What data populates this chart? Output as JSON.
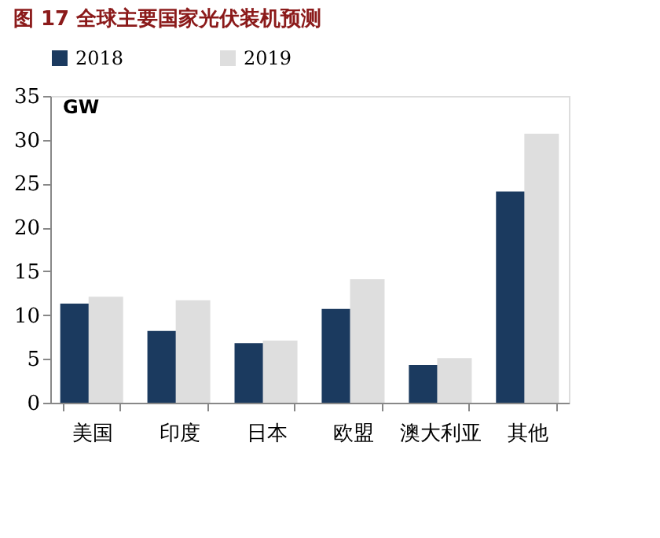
{
  "chart_data": {
    "type": "bar",
    "title": "图 17 全球主要国家光伏装机预测",
    "ylabel": "GW",
    "categories": [
      "美国",
      "印度",
      "日本",
      "欧盟",
      "澳大利亚",
      "其他"
    ],
    "series": [
      {
        "name": "2018",
        "color": "#1b3a5f",
        "values": [
          11.3,
          8.2,
          6.8,
          10.7,
          4.3,
          24.1
        ]
      },
      {
        "name": "2019",
        "color": "#dedede",
        "values": [
          12.1,
          11.7,
          7.1,
          14.1,
          5.1,
          30.7
        ]
      }
    ],
    "ylim": [
      0,
      35
    ],
    "yticks": [
      0,
      5,
      10,
      15,
      20,
      25,
      30,
      35
    ],
    "grid": false,
    "legend": "top"
  }
}
